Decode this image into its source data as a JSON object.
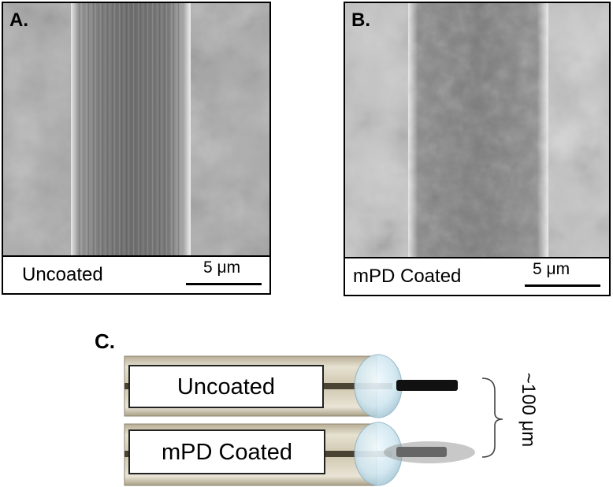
{
  "panels": {
    "a": {
      "letter": "A.",
      "caption": "Uncoated",
      "scale": "5 μm"
    },
    "b": {
      "letter": "B.",
      "caption": "mPD Coated",
      "scale": "5 μm"
    },
    "c": {
      "letter": "C."
    }
  },
  "diagram": {
    "probe_top_label": "Uncoated",
    "probe_bottom_label": "mPD Coated",
    "dimension_label": "~100 μm"
  }
}
